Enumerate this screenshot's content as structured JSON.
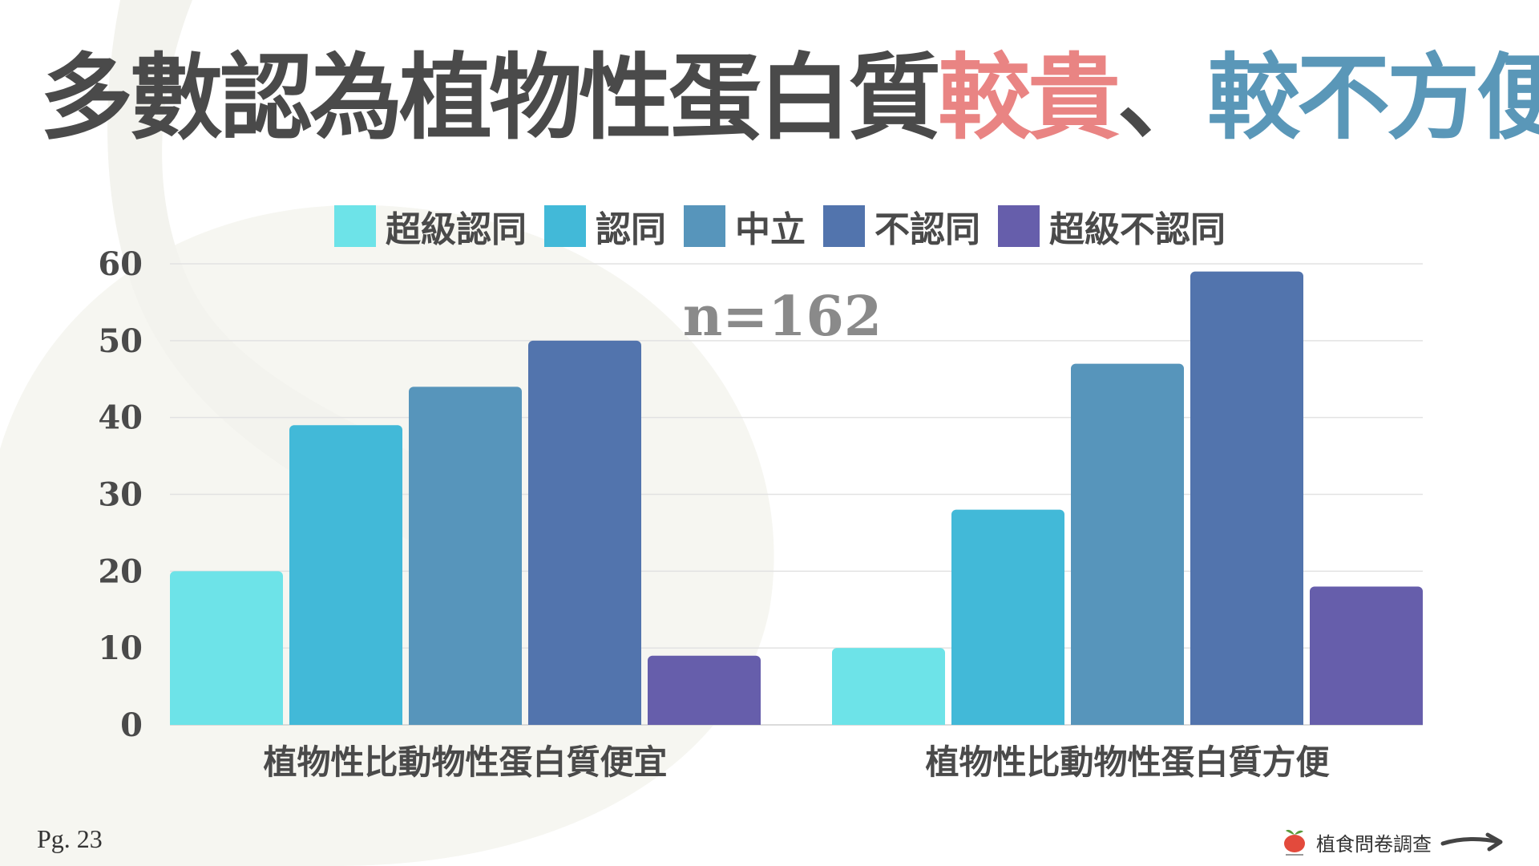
{
  "title": {
    "part1": "多數認為植物性蛋白質",
    "part2": "較貴",
    "part3": "、",
    "part4": "較不方便"
  },
  "colors": {
    "title_dark": "#4a4a4a",
    "title_pink": "#e98483",
    "title_blue": "#5a97b8"
  },
  "legend": [
    {
      "label": "超級認同",
      "color": "#6de3e8"
    },
    {
      "label": "認同",
      "color": "#42b9d8"
    },
    {
      "label": "中立",
      "color": "#5795bb"
    },
    {
      "label": "不認同",
      "color": "#5274ad"
    },
    {
      "label": "超級不認同",
      "color": "#665eab"
    }
  ],
  "chart_data": {
    "type": "bar",
    "categories": [
      "植物性比動物性蛋白質便宜",
      "植物性比動物性蛋白質方便"
    ],
    "series": [
      {
        "name": "超級認同",
        "values": [
          20,
          10
        ],
        "color": "#6de3e8"
      },
      {
        "name": "認同",
        "values": [
          39,
          28
        ],
        "color": "#42b9d8"
      },
      {
        "name": "中立",
        "values": [
          44,
          47
        ],
        "color": "#5795bb"
      },
      {
        "name": "不認同",
        "values": [
          50,
          59
        ],
        "color": "#5274ad"
      },
      {
        "name": "超級不認同",
        "values": [
          9,
          18
        ],
        "color": "#665eab"
      }
    ],
    "ylim": [
      0,
      60
    ],
    "yticks": [
      0,
      10,
      20,
      30,
      40,
      50,
      60
    ],
    "grid": true,
    "legend_position": "top",
    "annotation": "n=162"
  },
  "footer": {
    "page": "Pg. 23",
    "brand": "植食問卷調查",
    "logo_icon": "tomato-logo-icon",
    "arrow_icon": "arrow-right-icon"
  }
}
